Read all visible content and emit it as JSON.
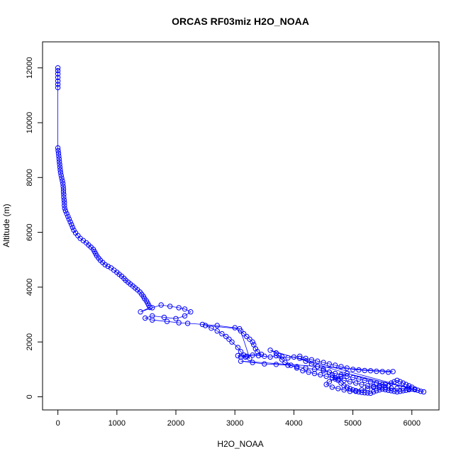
{
  "chart_data": {
    "type": "scatter",
    "title": "ORCAS RF03miz H2O_NOAA",
    "xlabel": "H2O_NOAA",
    "ylabel": "Altitude (m)",
    "xlim": [
      -260,
      6460
    ],
    "ylim": [
      -480,
      12950
    ],
    "xticks": [
      0,
      1000,
      2000,
      3000,
      4000,
      5000,
      6000
    ],
    "yticks": [
      0,
      2000,
      4000,
      6000,
      8000,
      10000,
      12000
    ],
    "grid": false,
    "legend": "none",
    "series_color": "#0000ff",
    "points": [
      [
        0,
        12000
      ],
      [
        0,
        11900
      ],
      [
        0,
        11780
      ],
      [
        0,
        11650
      ],
      [
        0,
        11520
      ],
      [
        0,
        11400
      ],
      [
        0,
        11280
      ],
      [
        0,
        9080
      ],
      [
        5,
        8980
      ],
      [
        10,
        8880
      ],
      [
        15,
        8780
      ],
      [
        20,
        8680
      ],
      [
        25,
        8580
      ],
      [
        30,
        8480
      ],
      [
        35,
        8380
      ],
      [
        40,
        8280
      ],
      [
        45,
        8180
      ],
      [
        55,
        8080
      ],
      [
        65,
        7980
      ],
      [
        75,
        7880
      ],
      [
        85,
        7780
      ],
      [
        90,
        7680
      ],
      [
        95,
        7580
      ],
      [
        95,
        7480
      ],
      [
        100,
        7380
      ],
      [
        100,
        7280
      ],
      [
        105,
        7180
      ],
      [
        110,
        7080
      ],
      [
        110,
        6980
      ],
      [
        115,
        6880
      ],
      [
        130,
        6780
      ],
      [
        150,
        6680
      ],
      [
        170,
        6580
      ],
      [
        190,
        6480
      ],
      [
        210,
        6380
      ],
      [
        230,
        6280
      ],
      [
        250,
        6180
      ],
      [
        270,
        6080
      ],
      [
        300,
        5980
      ],
      [
        340,
        5880
      ],
      [
        380,
        5780
      ],
      [
        430,
        5700
      ],
      [
        480,
        5620
      ],
      [
        520,
        5540
      ],
      [
        560,
        5460
      ],
      [
        600,
        5380
      ],
      [
        620,
        5300
      ],
      [
        640,
        5220
      ],
      [
        660,
        5140
      ],
      [
        690,
        5060
      ],
      [
        720,
        4980
      ],
      [
        760,
        4900
      ],
      [
        800,
        4820
      ],
      [
        850,
        4760
      ],
      [
        900,
        4700
      ],
      [
        950,
        4620
      ],
      [
        1000,
        4540
      ],
      [
        1040,
        4470
      ],
      [
        1080,
        4400
      ],
      [
        1120,
        4320
      ],
      [
        1150,
        4250
      ],
      [
        1190,
        4180
      ],
      [
        1230,
        4110
      ],
      [
        1270,
        4040
      ],
      [
        1310,
        3970
      ],
      [
        1350,
        3900
      ],
      [
        1390,
        3820
      ],
      [
        1420,
        3740
      ],
      [
        1450,
        3660
      ],
      [
        1470,
        3580
      ],
      [
        1500,
        3500
      ],
      [
        1520,
        3420
      ],
      [
        1540,
        3340
      ],
      [
        1560,
        3260
      ],
      [
        1400,
        3100
      ],
      [
        1600,
        3250
      ],
      [
        1750,
        3350
      ],
      [
        1900,
        3300
      ],
      [
        2050,
        3250
      ],
      [
        2150,
        3200
      ],
      [
        2250,
        3100
      ],
      [
        2150,
        2950
      ],
      [
        2000,
        2850
      ],
      [
        1800,
        2900
      ],
      [
        1600,
        2950
      ],
      [
        1480,
        2870
      ],
      [
        1600,
        2800
      ],
      [
        1850,
        2750
      ],
      [
        2050,
        2700
      ],
      [
        2200,
        2680
      ],
      [
        2450,
        2640
      ],
      [
        2700,
        2600
      ],
      [
        3000,
        2520
      ],
      [
        3080,
        2480
      ],
      [
        2500,
        2600
      ],
      [
        2600,
        2500
      ],
      [
        2700,
        2400
      ],
      [
        2780,
        2300
      ],
      [
        2850,
        2200
      ],
      [
        2900,
        2100
      ],
      [
        2950,
        2000
      ],
      [
        3050,
        1800
      ],
      [
        3100,
        1650
      ],
      [
        3150,
        1520
      ],
      [
        3180,
        1450
      ],
      [
        3250,
        1400
      ],
      [
        3100,
        2400
      ],
      [
        3150,
        2300
      ],
      [
        3200,
        2200
      ],
      [
        3250,
        2100
      ],
      [
        3300,
        2000
      ],
      [
        3320,
        1900
      ],
      [
        3350,
        1750
      ],
      [
        3380,
        1650
      ],
      [
        3450,
        1550
      ],
      [
        3050,
        1500
      ],
      [
        3100,
        1450
      ],
      [
        3200,
        1480
      ],
      [
        3300,
        1520
      ],
      [
        3400,
        1500
      ],
      [
        3500,
        1480
      ],
      [
        3600,
        1450
      ],
      [
        3700,
        1500
      ],
      [
        3800,
        1460
      ],
      [
        3900,
        1420
      ],
      [
        4000,
        1450
      ],
      [
        4100,
        1480
      ],
      [
        4200,
        1400
      ],
      [
        4300,
        1350
      ],
      [
        4400,
        1300
      ],
      [
        4500,
        1250
      ],
      [
        4600,
        1200
      ],
      [
        4700,
        1150
      ],
      [
        4800,
        1100
      ],
      [
        4900,
        1050
      ],
      [
        5000,
        1000
      ],
      [
        5100,
        980
      ],
      [
        5200,
        960
      ],
      [
        5300,
        950
      ],
      [
        5400,
        930
      ],
      [
        5500,
        920
      ],
      [
        5600,
        900
      ],
      [
        5680,
        920
      ],
      [
        3100,
        1300
      ],
      [
        3300,
        1250
      ],
      [
        3500,
        1200
      ],
      [
        3700,
        1180
      ],
      [
        3900,
        1150
      ],
      [
        4050,
        1100
      ],
      [
        4200,
        1050
      ],
      [
        4350,
        1000
      ],
      [
        4500,
        950
      ],
      [
        4600,
        900
      ],
      [
        4700,
        850
      ],
      [
        4800,
        800
      ],
      [
        4900,
        750
      ],
      [
        5000,
        700
      ],
      [
        5100,
        650
      ],
      [
        5200,
        600
      ],
      [
        5300,
        550
      ],
      [
        5400,
        500
      ],
      [
        5500,
        450
      ],
      [
        5600,
        400
      ],
      [
        3600,
        1700
      ],
      [
        3700,
        1600
      ],
      [
        3750,
        1500
      ],
      [
        3800,
        1350
      ],
      [
        3850,
        1250
      ],
      [
        3950,
        1150
      ],
      [
        4050,
        1050
      ],
      [
        4150,
        950
      ],
      [
        4250,
        900
      ],
      [
        4350,
        850
      ],
      [
        4450,
        800
      ],
      [
        4550,
        750
      ],
      [
        4650,
        700
      ],
      [
        4750,
        650
      ],
      [
        4850,
        600
      ],
      [
        4950,
        550
      ],
      [
        5050,
        500
      ],
      [
        5150,
        450
      ],
      [
        5250,
        400
      ],
      [
        5350,
        380
      ],
      [
        5450,
        350
      ],
      [
        5550,
        330
      ],
      [
        5650,
        320
      ],
      [
        5750,
        310
      ],
      [
        5850,
        300
      ],
      [
        5950,
        290
      ],
      [
        6050,
        280
      ],
      [
        6150,
        200
      ],
      [
        6200,
        180
      ],
      [
        4100,
        1400
      ],
      [
        4200,
        1300
      ],
      [
        4300,
        1200
      ],
      [
        4400,
        1100
      ],
      [
        4500,
        1000
      ],
      [
        4600,
        900
      ],
      [
        4650,
        800
      ],
      [
        4700,
        700
      ],
      [
        4750,
        600
      ],
      [
        4800,
        500
      ],
      [
        4850,
        400
      ],
      [
        4900,
        350
      ],
      [
        4950,
        300
      ],
      [
        5000,
        250
      ],
      [
        5050,
        200
      ],
      [
        5100,
        180
      ],
      [
        5150,
        160
      ],
      [
        5200,
        150
      ],
      [
        5250,
        140
      ],
      [
        5300,
        130
      ],
      [
        5350,
        180
      ],
      [
        5400,
        220
      ],
      [
        5450,
        250
      ],
      [
        5500,
        280
      ],
      [
        5550,
        260
      ],
      [
        5600,
        240
      ],
      [
        5650,
        220
      ],
      [
        5700,
        200
      ],
      [
        5750,
        180
      ],
      [
        5800,
        200
      ],
      [
        5850,
        220
      ],
      [
        5900,
        240
      ],
      [
        5950,
        260
      ],
      [
        6000,
        280
      ],
      [
        6050,
        260
      ],
      [
        6100,
        240
      ],
      [
        4900,
        850
      ],
      [
        4800,
        750
      ],
      [
        4700,
        650
      ],
      [
        4600,
        550
      ],
      [
        4550,
        450
      ],
      [
        4650,
        350
      ],
      [
        4750,
        300
      ],
      [
        4850,
        250
      ],
      [
        4950,
        200
      ],
      [
        5050,
        220
      ],
      [
        5150,
        250
      ],
      [
        5250,
        300
      ],
      [
        5350,
        350
      ],
      [
        5450,
        400
      ],
      [
        5550,
        450
      ],
      [
        5650,
        500
      ],
      [
        5700,
        550
      ],
      [
        5750,
        600
      ],
      [
        5800,
        550
      ],
      [
        5850,
        500
      ],
      [
        5900,
        450
      ],
      [
        5950,
        400
      ],
      [
        6000,
        350
      ]
    ]
  }
}
